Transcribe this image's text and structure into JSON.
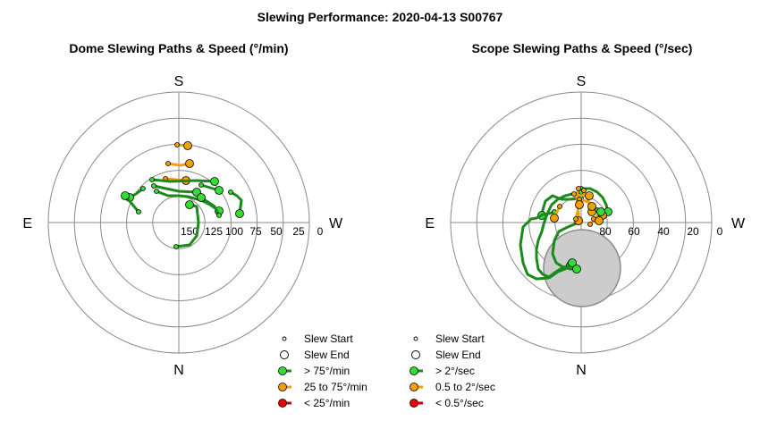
{
  "figure": {
    "title": "Slewing Performance: 2020-04-13 S00767"
  },
  "colors": {
    "fast": "#1a8a1a",
    "fast_marker": "#33dd33",
    "medium": "#f0a000",
    "medium_marker": "#f0a000",
    "slow": "#cc0000",
    "slow_marker": "#ee0000",
    "grid": "#8a8a8a",
    "exclusion_fill": "#cccccc"
  },
  "chart_data": [
    {
      "type": "polar-path",
      "title": "Dome Slewing Paths & Speed (°/min)",
      "cardinals": {
        "top": "S",
        "bottom": "N",
        "left": "E",
        "right": "W"
      },
      "radial_ticks": [
        "150",
        "125",
        "100",
        "75",
        "50",
        "25",
        "0"
      ],
      "legend": [
        {
          "kind": "start",
          "label": "Slew Start"
        },
        {
          "kind": "end",
          "label": "Slew End"
        },
        {
          "kind": "fast",
          "label": "> 75°/min"
        },
        {
          "kind": "medium",
          "label": "25 to 75°/min"
        },
        {
          "kind": "slow",
          "label": "< 25°/min"
        }
      ],
      "slews": [
        {
          "speed": "medium",
          "points": [
            [
              -2,
              87
            ],
            [
              10,
              86
            ]
          ]
        },
        {
          "speed": "medium",
          "points": [
            [
              -12,
              66
            ],
            [
              2,
              64
            ],
            [
              7,
              65
            ],
            [
              12,
              66
            ]
          ]
        },
        {
          "speed": "medium",
          "points": [
            [
              -15,
              49
            ],
            [
              8,
              47
            ]
          ]
        },
        {
          "speed": "fast",
          "points": [
            [
              -30,
              48
            ],
            [
              -10,
              46
            ],
            [
              20,
              47
            ],
            [
              40,
              46
            ]
          ]
        },
        {
          "speed": "fast",
          "points": [
            [
              -28,
              41
            ],
            [
              0,
              35
            ],
            [
              20,
              34
            ]
          ]
        },
        {
          "speed": "fast",
          "points": [
            [
              -25,
              35
            ],
            [
              -12,
              30
            ],
            [
              0,
              30
            ],
            [
              10,
              29
            ],
            [
              25,
              25
            ],
            [
              35,
              20
            ],
            [
              45,
              13
            ]
          ]
        },
        {
          "speed": "fast",
          "points": [
            [
              -40,
              38
            ],
            [
              -48,
              32
            ],
            [
              -55,
              28
            ]
          ]
        },
        {
          "speed": "fast",
          "points": [
            [
              25,
              42
            ],
            [
              45,
              36
            ]
          ]
        },
        {
          "speed": "fast",
          "points": [
            [
              58,
              34
            ],
            [
              65,
              30
            ],
            [
              70,
              25
            ],
            [
              68,
              10
            ]
          ]
        },
        {
          "speed": "fast",
          "points": [
            [
              -45,
              12
            ],
            [
              -60,
              30
            ]
          ]
        },
        {
          "speed": "fast",
          "points": [
            [
              -3,
              -27
            ],
            [
              12,
              -25
            ],
            [
              20,
              -15
            ],
            [
              22,
              0
            ],
            [
              20,
              18
            ],
            [
              12,
              20
            ]
          ]
        },
        {
          "speed": "fast",
          "points": [
            [
              45,
              8
            ],
            [
              40,
              18
            ],
            [
              25,
              28
            ]
          ]
        }
      ]
    },
    {
      "type": "polar-path",
      "title": "Scope Slewing Paths & Speed (°/sec)",
      "cardinals": {
        "top": "S",
        "bottom": "N",
        "left": "E",
        "right": "W"
      },
      "radial_ticks": [
        "80",
        "60",
        "40",
        "20",
        "0"
      ],
      "exclusion_zone": true,
      "legend": [
        {
          "kind": "start",
          "label": "Slew Start"
        },
        {
          "kind": "end",
          "label": "Slew End"
        },
        {
          "kind": "fast",
          "label": "> 2°/sec"
        },
        {
          "kind": "medium",
          "label": "0.5 to 2°/sec"
        },
        {
          "kind": "slow",
          "label": "< 0.5°/sec"
        }
      ],
      "slews": [
        {
          "speed": "fast",
          "points": [
            [
              0,
              38
            ],
            [
              10,
              38
            ],
            [
              18,
              34
            ],
            [
              24,
              28
            ],
            [
              28,
              20
            ],
            [
              30,
              12
            ]
          ]
        },
        {
          "speed": "fast",
          "points": [
            [
              0,
              27
            ],
            [
              -12,
              26
            ],
            [
              -22,
              26
            ],
            [
              -27,
              28
            ],
            [
              -32,
              30
            ],
            [
              -36,
              27
            ],
            [
              -40,
              24
            ],
            [
              -43,
              14
            ],
            [
              -44,
              8
            ]
          ]
        },
        {
          "speed": "fast",
          "points": [
            [
              0,
              34
            ],
            [
              -10,
              32
            ],
            [
              -18,
              30
            ],
            [
              -26,
              26
            ],
            [
              -33,
              20
            ],
            [
              -37,
              12
            ],
            [
              -40,
              4
            ],
            [
              -42,
              -2
            ],
            [
              -44,
              -10
            ],
            [
              -48,
              -20
            ],
            [
              -50,
              -30
            ],
            [
              -50,
              -40
            ],
            [
              -48,
              -52
            ],
            [
              -43,
              -58
            ],
            [
              -36,
              -61
            ],
            [
              -28,
              -55
            ],
            [
              -20,
              -50
            ],
            [
              -12,
              -48
            ]
          ]
        },
        {
          "speed": "fast",
          "points": [
            [
              -30,
              12
            ],
            [
              -36,
              10
            ],
            [
              -43,
              9
            ],
            [
              -50,
              5
            ],
            [
              -56,
              4
            ],
            [
              -60,
              0
            ],
            [
              -65,
              -5
            ],
            [
              -68,
              -25
            ],
            [
              -65,
              -45
            ],
            [
              -60,
              -58
            ],
            [
              -50,
              -63
            ],
            [
              -36,
              -62
            ],
            [
              -26,
              -55
            ],
            [
              -18,
              -52
            ],
            [
              -10,
              -45
            ]
          ]
        },
        {
          "speed": "fast",
          "points": [
            [
              -3,
              0
            ],
            [
              -15,
              -5
            ],
            [
              -25,
              -10
            ],
            [
              -30,
              -20
            ],
            [
              -32,
              -35
            ],
            [
              -28,
              -45
            ],
            [
              -20,
              -50
            ],
            [
              -12,
              -52
            ],
            [
              -5,
              -52
            ]
          ]
        },
        {
          "speed": "medium",
          "points": [
            [
              -3,
              38
            ],
            [
              -5,
              30
            ],
            [
              -4,
              20
            ],
            [
              -3,
              10
            ],
            [
              -3,
              2
            ]
          ]
        },
        {
          "speed": "medium",
          "points": [
            [
              3,
              36
            ],
            [
              6,
              30
            ],
            [
              8,
              24
            ],
            [
              10,
              18
            ],
            [
              12,
              12
            ]
          ]
        },
        {
          "speed": "medium",
          "points": [
            [
              -8,
              32
            ],
            [
              0,
              30
            ],
            [
              6,
              32
            ],
            [
              9,
              30
            ]
          ]
        },
        {
          "speed": "medium",
          "points": [
            [
              -2,
              26
            ],
            [
              5,
              24
            ],
            [
              10,
              22
            ],
            [
              12,
              18
            ]
          ]
        },
        {
          "speed": "medium",
          "points": [
            [
              -24,
              18
            ],
            [
              -28,
              10
            ],
            [
              -30,
              5
            ]
          ]
        },
        {
          "speed": "medium",
          "points": [
            [
              -6,
              4
            ],
            [
              -4,
              12
            ],
            [
              -2,
              20
            ]
          ]
        },
        {
          "speed": "medium",
          "points": [
            [
              10,
              -2
            ],
            [
              16,
              5
            ],
            [
              20,
              10
            ],
            [
              24,
              8
            ]
          ]
        },
        {
          "speed": "medium",
          "points": [
            [
              14,
              4
            ],
            [
              20,
              2
            ]
          ]
        },
        {
          "speed": "fast",
          "points": [
            [
              18,
              14
            ],
            [
              22,
              12
            ]
          ]
        }
      ]
    }
  ]
}
